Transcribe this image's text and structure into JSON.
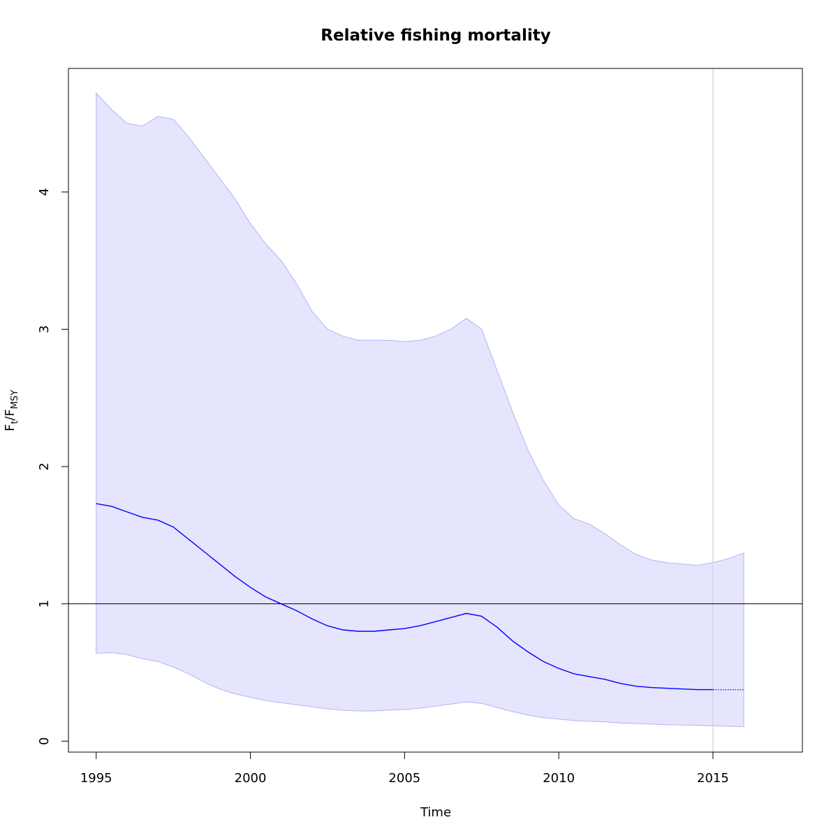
{
  "chart_data": {
    "type": "line",
    "title": "Relative fishing mortality",
    "xlabel": "Time",
    "ylabel": {
      "main": "F",
      "sub1": "t",
      "sep": "/",
      "main2": "F",
      "sub2": "MSY"
    },
    "xlim": [
      1994.1,
      2017.9
    ],
    "ylim": [
      -0.08,
      4.9
    ],
    "x_ticks": [
      1995,
      2000,
      2005,
      2010,
      2015
    ],
    "x_tick_labels": [
      "1995",
      "2000",
      "2005",
      "2010",
      "2015"
    ],
    "y_ticks": [
      0,
      1,
      2,
      3,
      4
    ],
    "y_tick_labels": [
      "0",
      "1",
      "2",
      "3",
      "4"
    ],
    "reference_line_y": 1,
    "vertical_line_x": 2015,
    "colors": {
      "band_fill": "#e5e5fe",
      "band_edge": "#b3b3f5",
      "line": "#0000ff",
      "ref_line": "#000000",
      "vline": "#d0d0d8"
    },
    "series": [
      {
        "role": "estimate",
        "x": [
          1995,
          1995.5,
          1996,
          1996.5,
          1997,
          1997.5,
          1998,
          1998.5,
          1999,
          1999.5,
          2000,
          2000.5,
          2001,
          2001.5,
          2002,
          2002.5,
          2003,
          2003.5,
          2004,
          2004.5,
          2005,
          2005.5,
          2006,
          2006.5,
          2007,
          2007.5,
          2008,
          2008.5,
          2009,
          2009.5,
          2010,
          2010.5,
          2011,
          2011.5,
          2012,
          2012.5,
          2013,
          2013.5,
          2014,
          2014.5,
          2015
        ],
        "y": [
          1.73,
          1.71,
          1.67,
          1.63,
          1.61,
          1.56,
          1.47,
          1.38,
          1.29,
          1.2,
          1.12,
          1.05,
          1.0,
          0.95,
          0.89,
          0.84,
          0.81,
          0.8,
          0.8,
          0.81,
          0.82,
          0.84,
          0.87,
          0.9,
          0.93,
          0.91,
          0.83,
          0.73,
          0.65,
          0.58,
          0.53,
          0.49,
          0.47,
          0.45,
          0.42,
          0.4,
          0.39,
          0.385,
          0.38,
          0.375,
          0.375
        ]
      },
      {
        "role": "projection",
        "x": [
          2015,
          2016
        ],
        "y": [
          0.375,
          0.375
        ]
      },
      {
        "role": "upper",
        "x": [
          1995,
          1995.5,
          1996,
          1996.5,
          1997,
          1997.5,
          1998,
          1998.5,
          1999,
          1999.5,
          2000,
          2000.5,
          2001,
          2001.5,
          2002,
          2002.5,
          2003,
          2003.5,
          2004,
          2004.5,
          2005,
          2005.5,
          2006,
          2006.5,
          2007,
          2007.5,
          2008,
          2008.5,
          2009,
          2009.5,
          2010,
          2010.5,
          2011,
          2011.5,
          2012,
          2012.5,
          2013,
          2013.5,
          2014,
          2014.5,
          2015,
          2015.5,
          2016
        ],
        "y": [
          4.72,
          4.6,
          4.5,
          4.48,
          4.55,
          4.53,
          4.4,
          4.25,
          4.1,
          3.95,
          3.77,
          3.62,
          3.5,
          3.33,
          3.13,
          3.0,
          2.95,
          2.92,
          2.92,
          2.92,
          2.91,
          2.92,
          2.95,
          3.0,
          3.08,
          3.0,
          2.7,
          2.4,
          2.12,
          1.9,
          1.72,
          1.62,
          1.58,
          1.51,
          1.43,
          1.36,
          1.32,
          1.3,
          1.29,
          1.28,
          1.3,
          1.33,
          1.37
        ]
      },
      {
        "role": "lower",
        "x": [
          1995,
          1995.5,
          1996,
          1996.5,
          1997,
          1997.5,
          1998,
          1998.5,
          1999,
          1999.5,
          2000,
          2000.5,
          2001,
          2001.5,
          2002,
          2002.5,
          2003,
          2003.5,
          2004,
          2004.5,
          2005,
          2005.5,
          2006,
          2006.5,
          2007,
          2007.5,
          2008,
          2008.5,
          2009,
          2009.5,
          2010,
          2010.5,
          2011,
          2011.5,
          2012,
          2012.5,
          2013,
          2013.5,
          2014,
          2014.5,
          2015,
          2015.5,
          2016
        ],
        "y": [
          0.64,
          0.645,
          0.63,
          0.6,
          0.58,
          0.54,
          0.49,
          0.43,
          0.38,
          0.345,
          0.32,
          0.295,
          0.28,
          0.265,
          0.25,
          0.235,
          0.225,
          0.22,
          0.22,
          0.225,
          0.23,
          0.24,
          0.255,
          0.27,
          0.285,
          0.275,
          0.245,
          0.215,
          0.19,
          0.17,
          0.16,
          0.15,
          0.145,
          0.14,
          0.132,
          0.128,
          0.124,
          0.12,
          0.118,
          0.115,
          0.112,
          0.108,
          0.105
        ]
      }
    ]
  }
}
